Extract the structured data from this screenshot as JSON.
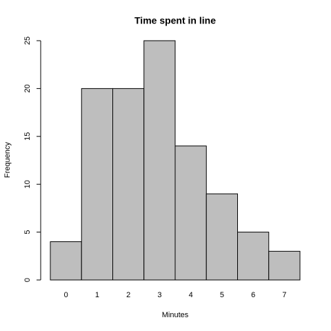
{
  "chart_data": {
    "type": "bar",
    "title": "Time spent in line",
    "x_label": "Minutes",
    "y_label": "Frequency",
    "categories": [
      "0",
      "1",
      "2",
      "3",
      "4",
      "5",
      "6",
      "7"
    ],
    "values": [
      4,
      20,
      20,
      25,
      14,
      9,
      5,
      3
    ],
    "color": "#bebebe",
    "ylim": [
      0,
      25
    ],
    "yticks": [
      0,
      5,
      10,
      15,
      20,
      25
    ],
    "grid": false
  }
}
